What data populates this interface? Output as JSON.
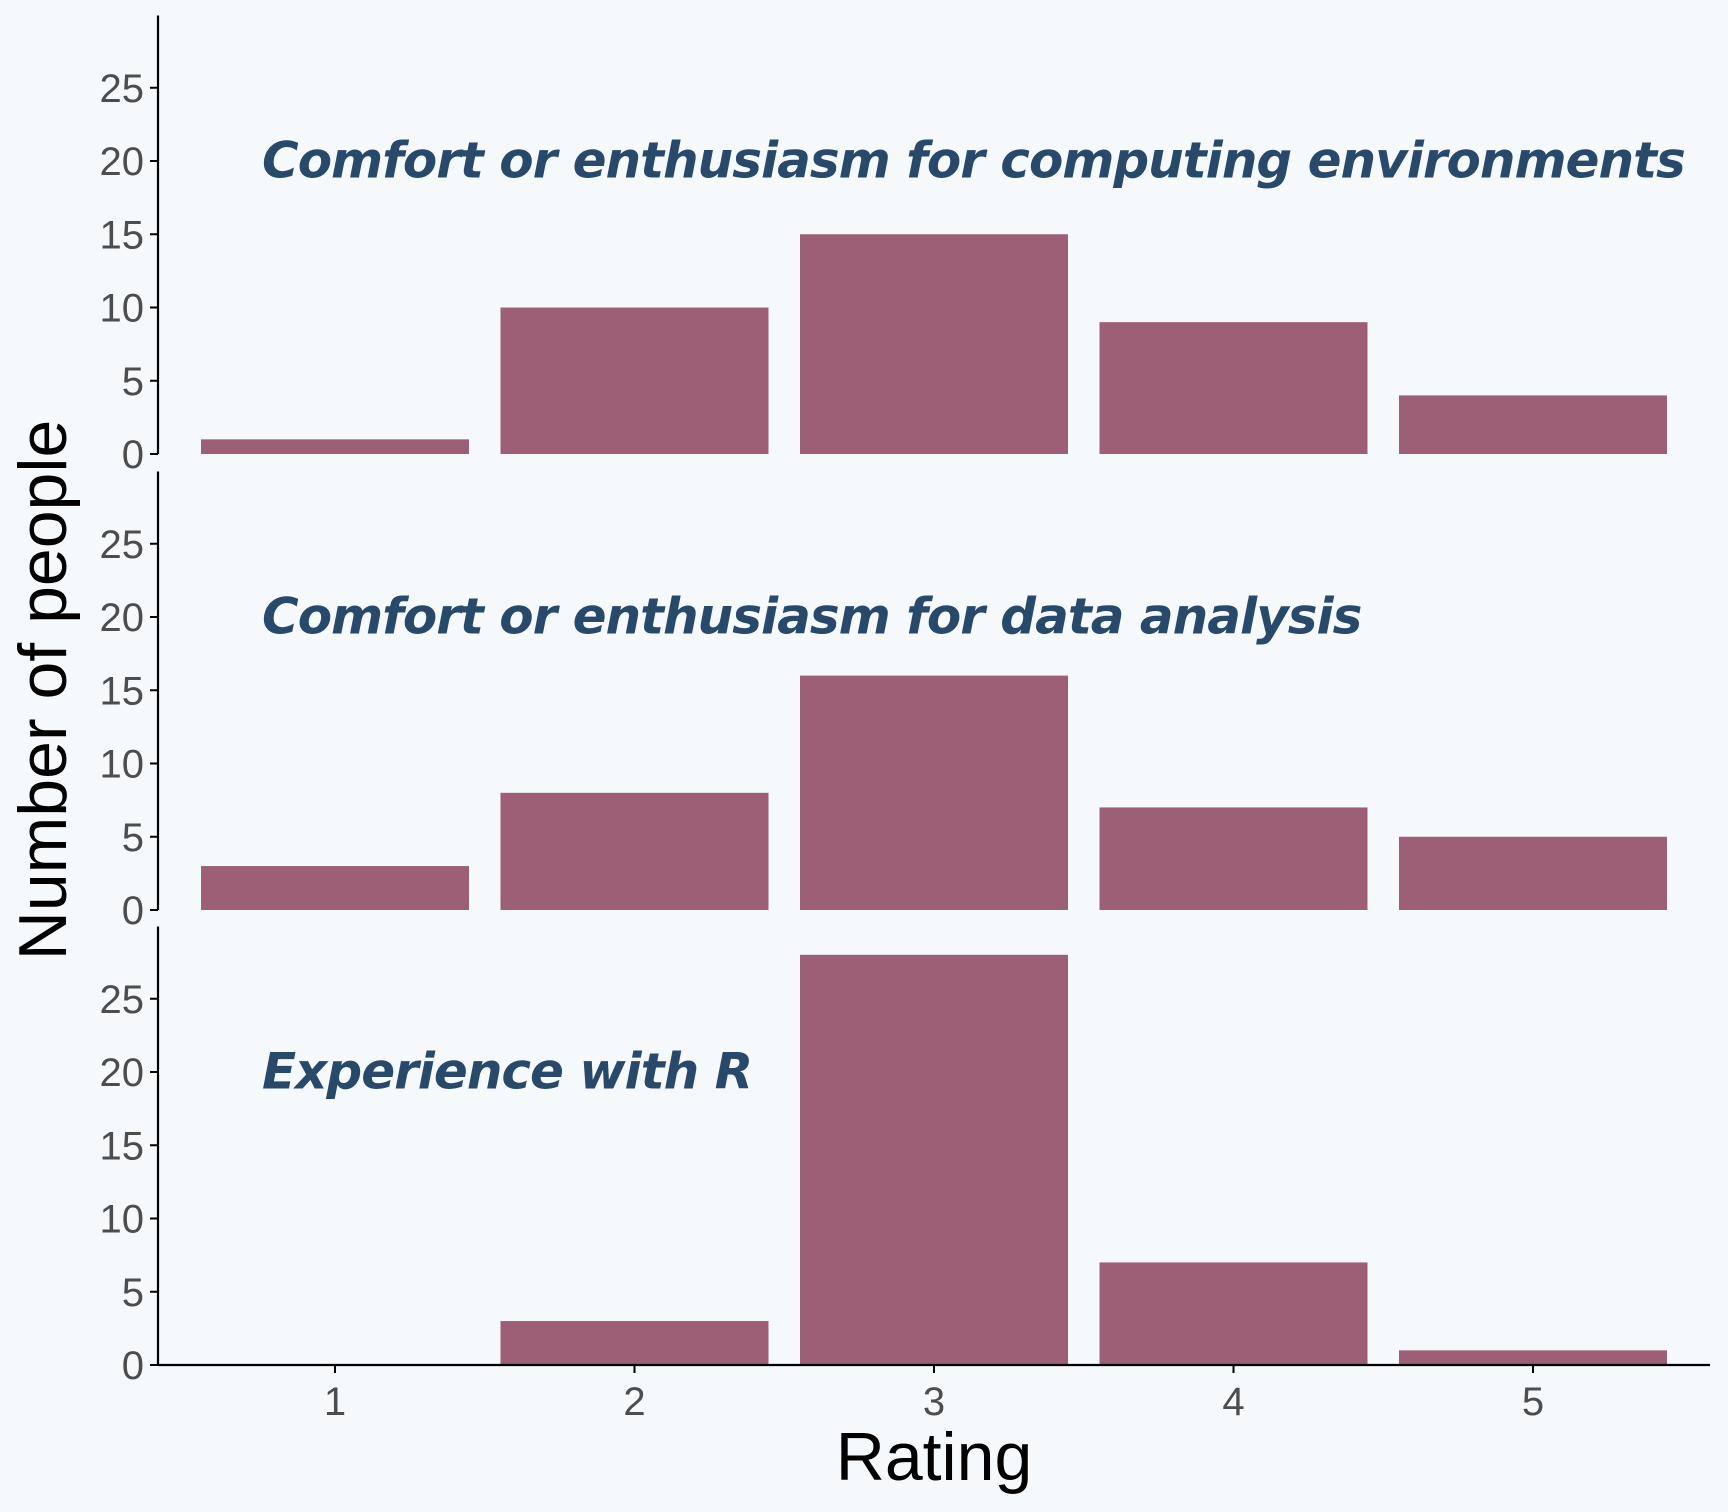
{
  "chart_data": {
    "type": "bar",
    "xlabel": "Rating",
    "ylabel": "Number of people",
    "categories": [
      "1",
      "2",
      "3",
      "4",
      "5"
    ],
    "ylim": [
      0,
      30
    ],
    "yticks": [
      0,
      5,
      10,
      15,
      20,
      25
    ],
    "grid": false,
    "colors": {
      "bar": "#9c5f75",
      "title": "#29496a",
      "background": "#f6f9fc",
      "axis": "#000000",
      "tick_text": "#4d4d4d"
    },
    "panels": [
      {
        "title": "Comfort or enthusiasm for computing environments",
        "values": [
          1,
          10,
          15,
          9,
          4
        ]
      },
      {
        "title": "Comfort or enthusiasm for data analysis",
        "values": [
          3,
          8,
          16,
          7,
          5
        ]
      },
      {
        "title": "Experience with R",
        "values": [
          0,
          3,
          28,
          7,
          1
        ]
      }
    ]
  }
}
